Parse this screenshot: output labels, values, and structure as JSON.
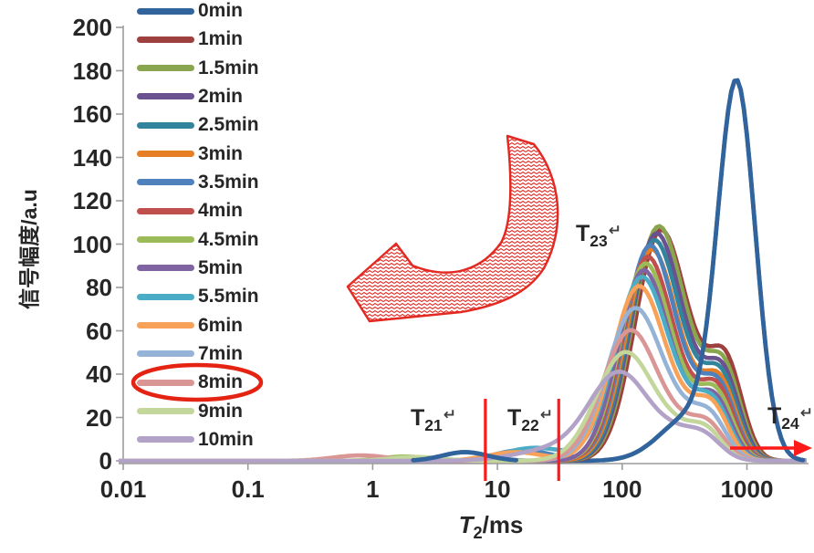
{
  "figure": {
    "xlabel_base": "T",
    "xlabel_sub": "2",
    "xlabel_unit": "/ms"
  },
  "chart_data": {
    "type": "line",
    "title": "",
    "xlabel": "T2/ms",
    "ylabel": "信号幅度/a.u",
    "x_scale": "log",
    "xlim": [
      0.01,
      3000
    ],
    "ylim": [
      0,
      200
    ],
    "xticks": [
      0.01,
      0.1,
      1,
      10,
      100,
      1000
    ],
    "yticks": [
      0,
      20,
      40,
      60,
      80,
      100,
      120,
      140,
      160,
      180,
      200
    ],
    "grid": false,
    "legend_position": "inside-upper-left",
    "peak_encoding": "peaks are [center_T2_ms, amplitude_au, width_sigma_in_log10_decades]; each curve is the sum of its peaks",
    "series": [
      {
        "name": "0min",
        "color": "#31639C",
        "peaks": [
          [
            5.5,
            4,
            0.18
          ],
          [
            350,
            20,
            0.24
          ],
          [
            830,
            170,
            0.15
          ]
        ]
      },
      {
        "name": "1min",
        "color": "#9E403D",
        "peaks": [
          [
            200,
            104,
            0.2
          ],
          [
            420,
            18,
            0.16
          ],
          [
            690,
            40,
            0.13
          ]
        ]
      },
      {
        "name": "1.5min",
        "color": "#89A54E",
        "peaks": [
          [
            192,
            106,
            0.2
          ],
          [
            410,
            18,
            0.16
          ],
          [
            670,
            37,
            0.13
          ]
        ]
      },
      {
        "name": "2min",
        "color": "#6A5190",
        "peaks": [
          [
            185,
            103,
            0.2
          ],
          [
            400,
            17,
            0.16
          ],
          [
            655,
            35,
            0.13
          ]
        ]
      },
      {
        "name": "2.5min",
        "color": "#31849B",
        "peaks": [
          [
            178,
            100,
            0.2
          ],
          [
            390,
            17,
            0.16
          ],
          [
            640,
            33,
            0.13
          ]
        ]
      },
      {
        "name": "3min",
        "color": "#E57E25",
        "peaks": [
          [
            170,
            96,
            0.2
          ],
          [
            380,
            16,
            0.16
          ],
          [
            625,
            31,
            0.13
          ]
        ]
      },
      {
        "name": "3.5min",
        "color": "#4F81BD",
        "peaks": [
          [
            16,
            5,
            0.22
          ],
          [
            165,
            98,
            0.2
          ],
          [
            375,
            16,
            0.16
          ],
          [
            612,
            29,
            0.13
          ]
        ]
      },
      {
        "name": "4min",
        "color": "#C0504D",
        "peaks": [
          [
            158,
            93,
            0.2
          ],
          [
            365,
            15,
            0.16
          ],
          [
            598,
            28,
            0.13
          ]
        ]
      },
      {
        "name": "4.5min",
        "color": "#9BBB59",
        "peaks": [
          [
            1.8,
            2,
            0.18
          ],
          [
            152,
            90,
            0.2
          ],
          [
            355,
            15,
            0.16
          ],
          [
            585,
            26,
            0.13
          ]
        ]
      },
      {
        "name": "5min",
        "color": "#8064A2",
        "peaks": [
          [
            147,
            87,
            0.2
          ],
          [
            345,
            14,
            0.16
          ],
          [
            570,
            24,
            0.13
          ]
        ]
      },
      {
        "name": "5.5min",
        "color": "#4BACC6",
        "peaks": [
          [
            20,
            6,
            0.25
          ],
          [
            142,
            84,
            0.21
          ],
          [
            338,
            14,
            0.16
          ],
          [
            555,
            22,
            0.13
          ]
        ]
      },
      {
        "name": "6min",
        "color": "#F7A159",
        "peaks": [
          [
            14,
            4,
            0.22
          ],
          [
            135,
            80,
            0.21
          ],
          [
            330,
            13,
            0.16
          ],
          [
            540,
            21,
            0.13
          ]
        ]
      },
      {
        "name": "7min",
        "color": "#95B3D7",
        "peaks": [
          [
            126,
            70,
            0.22
          ],
          [
            315,
            12,
            0.16
          ],
          [
            520,
            17,
            0.13
          ]
        ]
      },
      {
        "name": "8min",
        "color": "#D99694",
        "peaks": [
          [
            0.8,
            2.5,
            0.22
          ],
          [
            116,
            60,
            0.22
          ],
          [
            300,
            10,
            0.16
          ],
          [
            500,
            14,
            0.13
          ]
        ]
      },
      {
        "name": "9min",
        "color": "#C3D69B",
        "peaks": [
          [
            2.2,
            1.8,
            0.2
          ],
          [
            106,
            50,
            0.23
          ],
          [
            285,
            9,
            0.16
          ],
          [
            480,
            12,
            0.13
          ]
        ]
      },
      {
        "name": "10min",
        "color": "#B3A2C7",
        "peaks": [
          [
            28,
            5,
            0.3
          ],
          [
            96,
            40,
            0.24
          ],
          [
            270,
            8,
            0.16
          ],
          [
            460,
            10,
            0.14
          ]
        ]
      }
    ],
    "annotations": {
      "region_labels": [
        {
          "id": "T21",
          "base": "T",
          "sub": "21",
          "mark": "↵"
        },
        {
          "id": "T22",
          "base": "T",
          "sub": "22",
          "mark": "↵"
        },
        {
          "id": "T23",
          "base": "T",
          "sub": "23",
          "mark": "↵"
        },
        {
          "id": "T24",
          "base": "T",
          "sub": "24",
          "mark": "↵"
        }
      ],
      "divider_lines_ms": [
        8,
        31
      ],
      "divider_color": "#FF1A1A",
      "highlight_color": "#E42313",
      "highlighted_legend_item": "8min",
      "curved_arrow": "counterclockwise red hatched arrow",
      "right_arrow": "red arrow pointing right past 1000 ms"
    }
  }
}
